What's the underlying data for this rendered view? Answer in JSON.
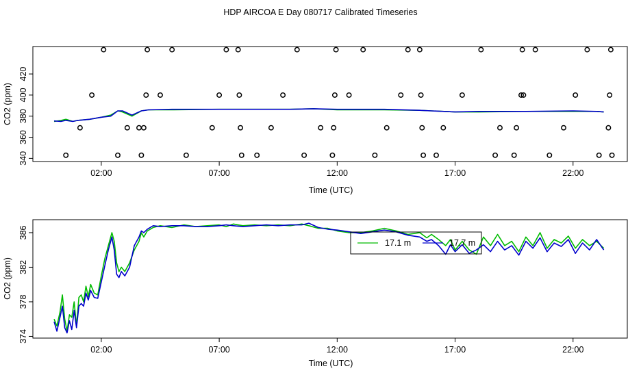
{
  "figure": {
    "title": "HDP AIRCOA E  Day 080717  Calibrated Timeseries"
  },
  "colors": {
    "series_green": "#00bb00",
    "series_blue": "#0000cc",
    "axes": "#000000",
    "background": "#ffffff"
  },
  "chart_data": [
    {
      "type": "scatter+line",
      "title": "",
      "xlabel": "Time (UTC)",
      "ylabel": "CO2 (ppm)",
      "x_ticks": [
        "02:00",
        "07:00",
        "12:00",
        "17:00",
        "22:00"
      ],
      "y_ticks": [
        "340",
        "360",
        "380",
        "400",
        "420"
      ],
      "ylim": [
        337,
        446
      ],
      "xlim_hours": [
        -0.9,
        24.3
      ],
      "legend": "none",
      "grid": false,
      "calibration_points": {
        "marker": "open circle",
        "x_hours": [
          0.5,
          1.1,
          1.6,
          2.1,
          2.7,
          3.1,
          3.6,
          3.7,
          3.8,
          3.9,
          3.95,
          4.5,
          5.0,
          5.6,
          6.7,
          7.0,
          7.3,
          7.8,
          7.85,
          7.9,
          7.95,
          8.6,
          9.2,
          9.7,
          10.3,
          10.6,
          11.3,
          11.8,
          11.85,
          11.9,
          11.95,
          12.5,
          13.1,
          13.6,
          14.1,
          14.7,
          15.0,
          15.5,
          15.55,
          15.6,
          15.65,
          16.2,
          16.5,
          17.3,
          18.1,
          18.7,
          18.9,
          19.5,
          19.6,
          19.8,
          19.85,
          19.9,
          20.4,
          21.0,
          21.6,
          22.1,
          22.6,
          23.1,
          23.5,
          23.55,
          23.6,
          23.65
        ],
        "y_ppm": [
          343,
          369,
          400,
          443,
          343,
          369,
          369,
          343,
          369,
          400,
          443,
          400,
          443,
          343,
          369,
          400,
          443,
          443,
          400,
          369,
          343,
          343,
          369,
          400,
          443,
          343,
          369,
          343,
          369,
          400,
          443,
          400,
          443,
          343,
          369,
          400,
          443,
          443,
          400,
          369,
          343,
          343,
          369,
          400,
          443,
          343,
          369,
          343,
          369,
          400,
          443,
          400,
          443,
          343,
          369,
          400,
          443,
          343,
          369,
          400,
          443,
          343
        ]
      },
      "series": [
        {
          "name": "",
          "color": "green",
          "x_hours": [
            0,
            0.3,
            0.5,
            0.8,
            1.0,
            1.5,
            2.0,
            2.4,
            2.7,
            2.9,
            3.3,
            3.7,
            4.0,
            5.0,
            7.0,
            10.0,
            11.0,
            12.0,
            14.0,
            15.5,
            16.0,
            17.0,
            18.0,
            20.0,
            22.0,
            23.0,
            23.3
          ],
          "y_ppm": [
            375,
            376,
            377,
            375,
            376,
            377,
            379,
            381,
            385,
            384,
            380,
            385,
            386,
            386,
            386.5,
            386.5,
            387,
            386,
            386,
            385.5,
            385,
            384,
            384,
            384.5,
            384.5,
            384.5,
            384
          ]
        },
        {
          "name": "",
          "color": "blue",
          "x_hours": [
            0,
            0.3,
            0.5,
            0.8,
            1.0,
            1.5,
            2.0,
            2.4,
            2.7,
            2.9,
            3.3,
            3.7,
            4.0,
            5.0,
            7.0,
            10.0,
            11.0,
            12.0,
            14.0,
            15.5,
            16.0,
            17.0,
            18.0,
            20.0,
            22.0,
            23.0,
            23.3
          ],
          "y_ppm": [
            375.5,
            375,
            376,
            375,
            376,
            377,
            379,
            380,
            385,
            385,
            381,
            385,
            386,
            386.5,
            386.5,
            386.5,
            387,
            386.5,
            386.5,
            385.5,
            385,
            384,
            384.5,
            384.5,
            385,
            384.5,
            384
          ]
        }
      ]
    },
    {
      "type": "line",
      "title": "",
      "xlabel": "Time (UTC)",
      "ylabel": "CO2 (ppm)",
      "x_ticks": [
        "02:00",
        "07:00",
        "12:00",
        "17:00",
        "22:00"
      ],
      "y_ticks": [
        "374",
        "378",
        "382",
        "386"
      ],
      "ylim": [
        373.8,
        387.5
      ],
      "xlim_hours": [
        -0.9,
        24.3
      ],
      "legend": "center-right",
      "grid": false,
      "series": [
        {
          "name": "17.1 m",
          "color": "green",
          "x_hours": [
            0.0,
            0.12,
            0.25,
            0.35,
            0.45,
            0.55,
            0.65,
            0.75,
            0.85,
            0.95,
            1.05,
            1.15,
            1.25,
            1.35,
            1.45,
            1.55,
            1.7,
            1.85,
            2.0,
            2.15,
            2.3,
            2.45,
            2.55,
            2.65,
            2.75,
            2.85,
            3.0,
            3.2,
            3.4,
            3.6,
            3.7,
            3.8,
            3.95,
            4.2,
            4.5,
            5.0,
            5.5,
            6.0,
            6.5,
            7.0,
            7.3,
            7.6,
            8.0,
            8.5,
            9.0,
            9.5,
            10.0,
            10.5,
            10.8,
            11.2,
            11.6,
            12.0,
            12.5,
            13.0,
            13.5,
            14.0,
            14.5,
            15.0,
            15.5,
            15.8,
            16.0,
            16.3,
            16.6,
            16.8,
            17.0,
            17.3,
            17.6,
            17.9,
            18.2,
            18.5,
            18.8,
            19.1,
            19.4,
            19.7,
            20.0,
            20.3,
            20.6,
            20.9,
            21.2,
            21.5,
            21.8,
            22.1,
            22.4,
            22.7,
            23.0,
            23.3
          ],
          "y_ppm": [
            376.0,
            375.2,
            376.8,
            378.8,
            376.0,
            374.6,
            376.5,
            376.2,
            378.0,
            375.2,
            378.5,
            378.8,
            378.0,
            379.8,
            378.6,
            380.0,
            379.0,
            378.8,
            381.0,
            383.0,
            384.5,
            386.0,
            385.0,
            382.5,
            381.5,
            382.0,
            381.5,
            382.5,
            384.0,
            385.0,
            386.0,
            385.5,
            386.2,
            386.6,
            386.8,
            386.6,
            386.9,
            386.7,
            386.8,
            386.9,
            386.7,
            387.0,
            386.8,
            386.9,
            386.8,
            386.9,
            386.8,
            387.0,
            386.8,
            386.5,
            386.5,
            386.2,
            386.0,
            386.0,
            386.2,
            386.5,
            386.2,
            385.8,
            386.0,
            385.4,
            385.8,
            385.2,
            384.5,
            385.2,
            384.0,
            385.0,
            384.0,
            383.5,
            385.5,
            384.5,
            385.8,
            384.5,
            385.0,
            383.8,
            385.5,
            384.5,
            386.0,
            384.2,
            385.2,
            384.8,
            385.6,
            384.2,
            385.2,
            384.5,
            385.0,
            384.2
          ]
        },
        {
          "name": "17.7 m",
          "color": "blue",
          "x_hours": [
            0.0,
            0.12,
            0.25,
            0.35,
            0.45,
            0.55,
            0.65,
            0.75,
            0.85,
            0.95,
            1.05,
            1.15,
            1.25,
            1.35,
            1.45,
            1.55,
            1.7,
            1.85,
            2.0,
            2.15,
            2.3,
            2.45,
            2.55,
            2.65,
            2.75,
            2.85,
            3.0,
            3.2,
            3.4,
            3.6,
            3.7,
            3.8,
            3.95,
            4.2,
            4.5,
            5.0,
            5.5,
            6.0,
            6.5,
            7.0,
            7.3,
            7.6,
            8.0,
            8.5,
            9.0,
            9.5,
            10.0,
            10.5,
            10.8,
            11.2,
            11.6,
            12.0,
            12.5,
            13.0,
            13.5,
            14.0,
            14.5,
            15.0,
            15.5,
            15.8,
            16.0,
            16.3,
            16.6,
            16.8,
            17.0,
            17.3,
            17.6,
            17.9,
            18.2,
            18.5,
            18.8,
            19.1,
            19.4,
            19.7,
            20.0,
            20.3,
            20.6,
            20.9,
            21.2,
            21.5,
            21.8,
            22.1,
            22.4,
            22.7,
            23.0,
            23.3
          ],
          "y_ppm": [
            375.7,
            374.6,
            376.2,
            377.5,
            375.0,
            374.4,
            375.8,
            374.8,
            377.0,
            375.0,
            377.5,
            377.8,
            377.5,
            379.0,
            378.2,
            379.3,
            378.5,
            378.4,
            380.3,
            382.2,
            384.0,
            385.5,
            384.0,
            381.2,
            380.8,
            381.5,
            381.0,
            382.0,
            384.5,
            385.5,
            386.2,
            386.0,
            386.4,
            386.8,
            386.7,
            386.8,
            386.8,
            386.7,
            386.7,
            386.8,
            386.9,
            386.8,
            386.7,
            386.8,
            386.9,
            386.8,
            386.9,
            386.9,
            387.1,
            386.6,
            386.4,
            386.3,
            386.1,
            385.9,
            386.1,
            386.3,
            386.1,
            385.7,
            385.5,
            385.0,
            385.2,
            384.5,
            383.5,
            384.6,
            383.8,
            384.6,
            383.6,
            384.0,
            384.6,
            383.8,
            385.0,
            384.0,
            384.5,
            383.4,
            385.0,
            384.2,
            385.4,
            383.8,
            384.8,
            384.4,
            385.2,
            383.6,
            384.8,
            384.0,
            385.2,
            384.0
          ]
        }
      ]
    }
  ]
}
